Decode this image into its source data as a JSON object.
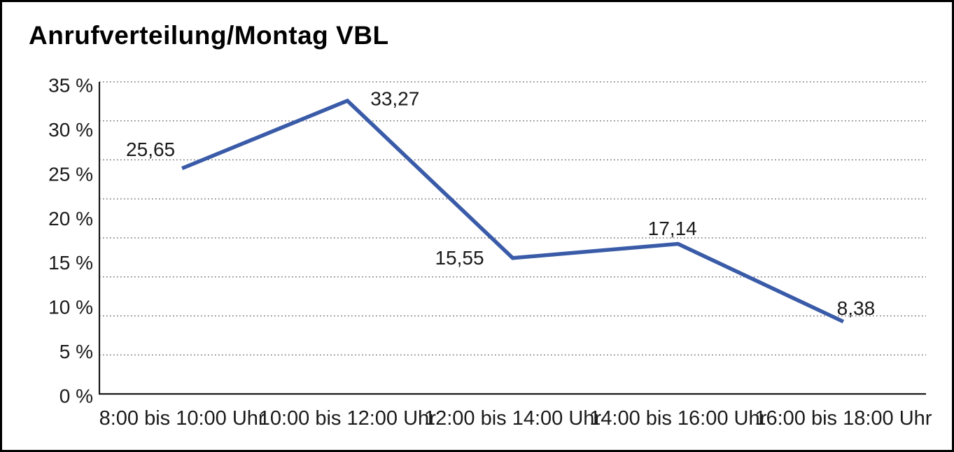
{
  "title": "Anrufverteilung/Montag VBL",
  "colors": {
    "line": "#3A5BA8",
    "axis": "#1a1a1a",
    "grid": "#555555",
    "text": "#1a1a1a",
    "background": "#ffffff",
    "border": "#000000"
  },
  "chart_data": {
    "type": "line",
    "title": "Anrufverteilung/Montag VBL",
    "categories": [
      "8:00 bis 10:00 Uhr",
      "10:00 bis 12:00 Uhr",
      "12:00 bis 14:00 Uhr",
      "14:00 bis 16:00 Uhr",
      "16:00 bis 18:00 Uhr"
    ],
    "values": [
      25.65,
      33.27,
      15.55,
      17.14,
      8.38
    ],
    "point_labels": [
      "25,65",
      "33,27",
      "15,55",
      "17,14",
      "8,38"
    ],
    "y_ticks": [
      "35 %",
      "30 %",
      "25 %",
      "20 %",
      "15 %",
      "10 %",
      "5 %",
      "0 %"
    ],
    "y_tick_values": [
      35,
      30,
      25,
      20,
      15,
      10,
      5,
      0
    ],
    "ylim": [
      0,
      35
    ],
    "xlabel": "",
    "ylabel": "",
    "grid": "horizontal-dotted",
    "gridline_count": 8,
    "legend": "none"
  }
}
